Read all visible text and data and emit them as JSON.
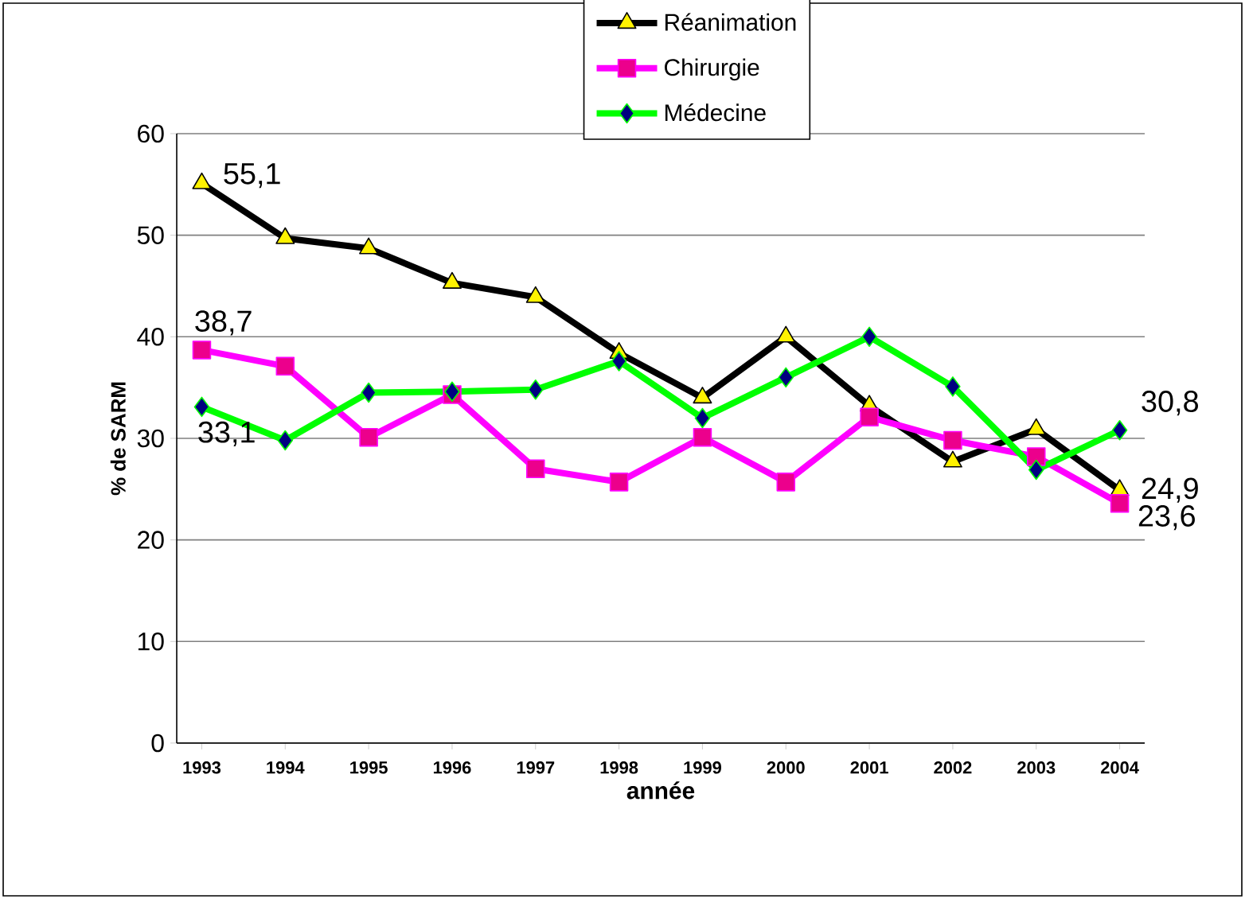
{
  "chart_data": {
    "type": "line",
    "xlabel": "année",
    "ylabel": "% de SARM",
    "categories": [
      "1993",
      "1994",
      "1995",
      "1996",
      "1997",
      "1998",
      "1999",
      "2000",
      "2001",
      "2002",
      "2003",
      "2004"
    ],
    "ylim": [
      0,
      60
    ],
    "yticks": [
      0,
      10,
      20,
      30,
      40,
      50,
      60
    ],
    "grid": "y",
    "legend": "top",
    "series": [
      {
        "name": "Réanimation",
        "color": "#000000",
        "marker": "triangle",
        "values": [
          55.1,
          49.7,
          48.7,
          45.3,
          43.9,
          38.4,
          34.0,
          40.0,
          33.2,
          27.7,
          30.9,
          24.9
        ],
        "value_labels": [
          "55,1",
          null,
          null,
          null,
          null,
          null,
          null,
          null,
          null,
          null,
          null,
          "24,9"
        ]
      },
      {
        "name": "Chirurgie",
        "color": "#ff00ff",
        "marker": "square",
        "values": [
          38.7,
          37.1,
          30.1,
          34.3,
          27.0,
          25.7,
          30.1,
          25.7,
          32.1,
          29.8,
          28.2,
          23.6
        ],
        "value_labels": [
          "38,7",
          null,
          null,
          null,
          null,
          null,
          null,
          null,
          null,
          null,
          null,
          "23,6"
        ]
      },
      {
        "name": "Médecine",
        "color": "#00ff00",
        "marker": "diamond",
        "values": [
          33.1,
          29.8,
          34.5,
          34.6,
          34.8,
          37.6,
          32.0,
          36.0,
          40.0,
          35.1,
          26.9,
          30.8
        ],
        "value_labels": [
          "33,1",
          null,
          null,
          null,
          null,
          null,
          null,
          null,
          null,
          null,
          null,
          "30,8"
        ]
      }
    ]
  }
}
